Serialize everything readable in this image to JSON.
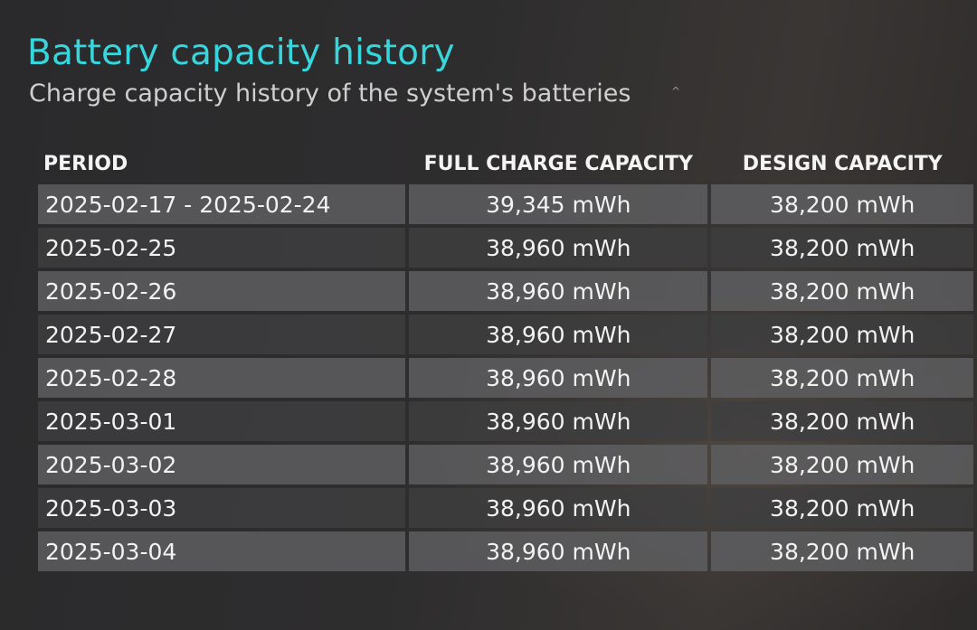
{
  "header": {
    "title": "Battery capacity history",
    "subtitle": "Charge capacity history of the system's batteries",
    "caret_icon": "caret-up-icon"
  },
  "table": {
    "columns": [
      "PERIOD",
      "FULL CHARGE CAPACITY",
      "DESIGN CAPACITY"
    ],
    "rows": [
      {
        "period": "2025-02-17 - 2025-02-24",
        "full_charge": "39,345 mWh",
        "design": "38,200 mWh"
      },
      {
        "period": "2025-02-25",
        "full_charge": "38,960 mWh",
        "design": "38,200 mWh"
      },
      {
        "period": "2025-02-26",
        "full_charge": "38,960 mWh",
        "design": "38,200 mWh"
      },
      {
        "period": "2025-02-27",
        "full_charge": "38,960 mWh",
        "design": "38,200 mWh"
      },
      {
        "period": "2025-02-28",
        "full_charge": "38,960 mWh",
        "design": "38,200 mWh"
      },
      {
        "period": "2025-03-01",
        "full_charge": "38,960 mWh",
        "design": "38,200 mWh"
      },
      {
        "period": "2025-03-02",
        "full_charge": "38,960 mWh",
        "design": "38,200 mWh"
      },
      {
        "period": "2025-03-03",
        "full_charge": "38,960 mWh",
        "design": "38,200 mWh"
      },
      {
        "period": "2025-03-04",
        "full_charge": "38,960 mWh",
        "design": "38,200 mWh"
      }
    ]
  },
  "colors": {
    "title": "#37d6dc",
    "subtitle": "#cfcfcf",
    "row_light": "#5f5f62",
    "row_dark": "#3e3e40",
    "text": "#f2f2f2"
  }
}
